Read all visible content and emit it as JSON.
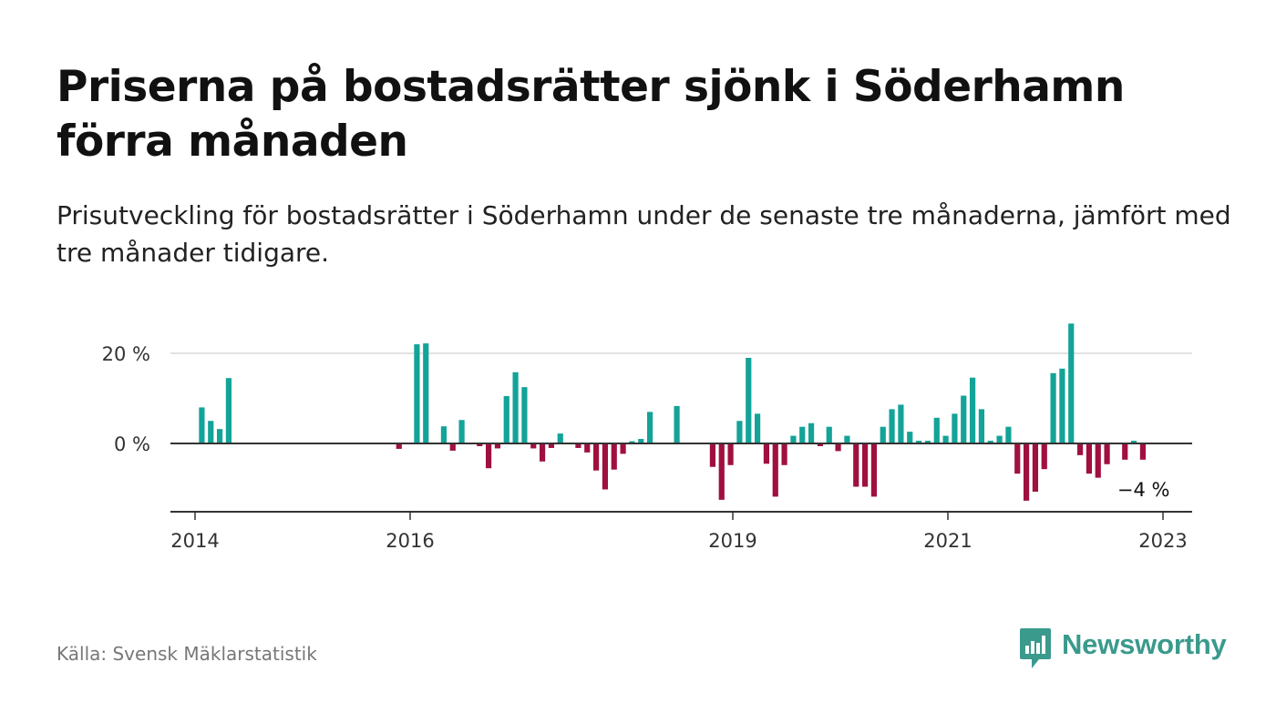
{
  "title": "Priserna på bostadsrätter sjönk i Söderhamn förra månaden",
  "subtitle": "Prisutveckling för bostadsrätter i Söderhamn under de senaste tre månaderna, jämfört med tre månader tidigare.",
  "source": "Källa: Svensk Mäklarstatistik",
  "brand": "Newsworthy",
  "colors": {
    "positive": "#13a398",
    "negative": "#a0103f",
    "brand": "#3a9a8c",
    "grid": "#d9d9d9",
    "axis": "#333333"
  },
  "chart_data": {
    "type": "bar",
    "x_start": "2014-01",
    "x_end": "2023-06",
    "x_ticks": [
      {
        "date": "2014-01",
        "label": "2014"
      },
      {
        "date": "2016-01",
        "label": "2016"
      },
      {
        "date": "2019-01",
        "label": "2019"
      },
      {
        "date": "2021-01",
        "label": "2021"
      },
      {
        "date": "2023-01",
        "label": "2023"
      }
    ],
    "y_ticks": [
      {
        "value": 0,
        "label": "0 %"
      },
      {
        "value": 20,
        "label": "20 %"
      }
    ],
    "ylim": [
      -15,
      27
    ],
    "grid": true,
    "end_label": "−4 %",
    "values": [
      {
        "date": "2014-04",
        "value": 8
      },
      {
        "date": "2014-05",
        "value": 5
      },
      {
        "date": "2014-06",
        "value": 3.2
      },
      {
        "date": "2014-07",
        "value": 14.5
      },
      {
        "date": "2016-02",
        "value": -1.2
      },
      {
        "date": "2016-04",
        "value": 22
      },
      {
        "date": "2016-05",
        "value": 22.2
      },
      {
        "date": "2016-07",
        "value": 3.8
      },
      {
        "date": "2016-08",
        "value": -1.6
      },
      {
        "date": "2016-09",
        "value": 5.2
      },
      {
        "date": "2016-11",
        "value": -0.6
      },
      {
        "date": "2016-12",
        "value": -5.5
      },
      {
        "date": "2017-01",
        "value": -1.1
      },
      {
        "date": "2017-02",
        "value": 10.5
      },
      {
        "date": "2017-03",
        "value": 15.8
      },
      {
        "date": "2017-04",
        "value": 12.5
      },
      {
        "date": "2017-05",
        "value": -1.1
      },
      {
        "date": "2017-06",
        "value": -4
      },
      {
        "date": "2017-07",
        "value": -1
      },
      {
        "date": "2017-08",
        "value": 2.2
      },
      {
        "date": "2017-10",
        "value": -1
      },
      {
        "date": "2017-11",
        "value": -2
      },
      {
        "date": "2017-12",
        "value": -6
      },
      {
        "date": "2018-01",
        "value": -10.2
      },
      {
        "date": "2018-02",
        "value": -5.8
      },
      {
        "date": "2018-03",
        "value": -2.3
      },
      {
        "date": "2018-04",
        "value": 0.5
      },
      {
        "date": "2018-05",
        "value": 1
      },
      {
        "date": "2018-06",
        "value": 7
      },
      {
        "date": "2018-09",
        "value": 8.3
      },
      {
        "date": "2019-01",
        "value": -5.2
      },
      {
        "date": "2019-02",
        "value": -12.5
      },
      {
        "date": "2019-03",
        "value": -4.8
      },
      {
        "date": "2019-04",
        "value": 5
      },
      {
        "date": "2019-05",
        "value": 19
      },
      {
        "date": "2019-06",
        "value": 6.6
      },
      {
        "date": "2019-07",
        "value": -4.5
      },
      {
        "date": "2019-08",
        "value": -11.8
      },
      {
        "date": "2019-09",
        "value": -4.8
      },
      {
        "date": "2019-10",
        "value": 1.7
      },
      {
        "date": "2019-11",
        "value": 3.7
      },
      {
        "date": "2019-12",
        "value": 4.5
      },
      {
        "date": "2020-01",
        "value": -0.6
      },
      {
        "date": "2020-02",
        "value": 3.7
      },
      {
        "date": "2020-03",
        "value": -1.7
      },
      {
        "date": "2020-04",
        "value": 1.7
      },
      {
        "date": "2020-05",
        "value": -9.6
      },
      {
        "date": "2020-06",
        "value": -9.6
      },
      {
        "date": "2020-07",
        "value": -11.8
      },
      {
        "date": "2020-08",
        "value": 3.7
      },
      {
        "date": "2020-09",
        "value": 7.6
      },
      {
        "date": "2020-10",
        "value": 8.6
      },
      {
        "date": "2020-11",
        "value": 2.6
      },
      {
        "date": "2020-12",
        "value": 0.6
      },
      {
        "date": "2021-01",
        "value": 0.6
      },
      {
        "date": "2021-02",
        "value": 5.7
      },
      {
        "date": "2021-03",
        "value": 1.7
      },
      {
        "date": "2021-04",
        "value": 6.6
      },
      {
        "date": "2021-05",
        "value": 10.6
      },
      {
        "date": "2021-06",
        "value": 14.6
      },
      {
        "date": "2021-07",
        "value": 7.6
      },
      {
        "date": "2021-08",
        "value": 0.6
      },
      {
        "date": "2021-09",
        "value": 1.7
      },
      {
        "date": "2021-10",
        "value": 3.7
      },
      {
        "date": "2021-11",
        "value": -6.7
      },
      {
        "date": "2021-12",
        "value": -12.7
      },
      {
        "date": "2022-01",
        "value": -10.7
      },
      {
        "date": "2022-02",
        "value": -5.7
      },
      {
        "date": "2022-03",
        "value": 15.6
      },
      {
        "date": "2022-04",
        "value": 16.6
      },
      {
        "date": "2022-05",
        "value": 26.6
      },
      {
        "date": "2022-06",
        "value": -2.6
      },
      {
        "date": "2022-07",
        "value": -6.7
      },
      {
        "date": "2022-08",
        "value": -7.6
      },
      {
        "date": "2022-09",
        "value": -4.6
      },
      {
        "date": "2022-11",
        "value": -3.6
      },
      {
        "date": "2022-12",
        "value": 0.6
      },
      {
        "date": "2023-01",
        "value": -3.6
      }
    ]
  }
}
